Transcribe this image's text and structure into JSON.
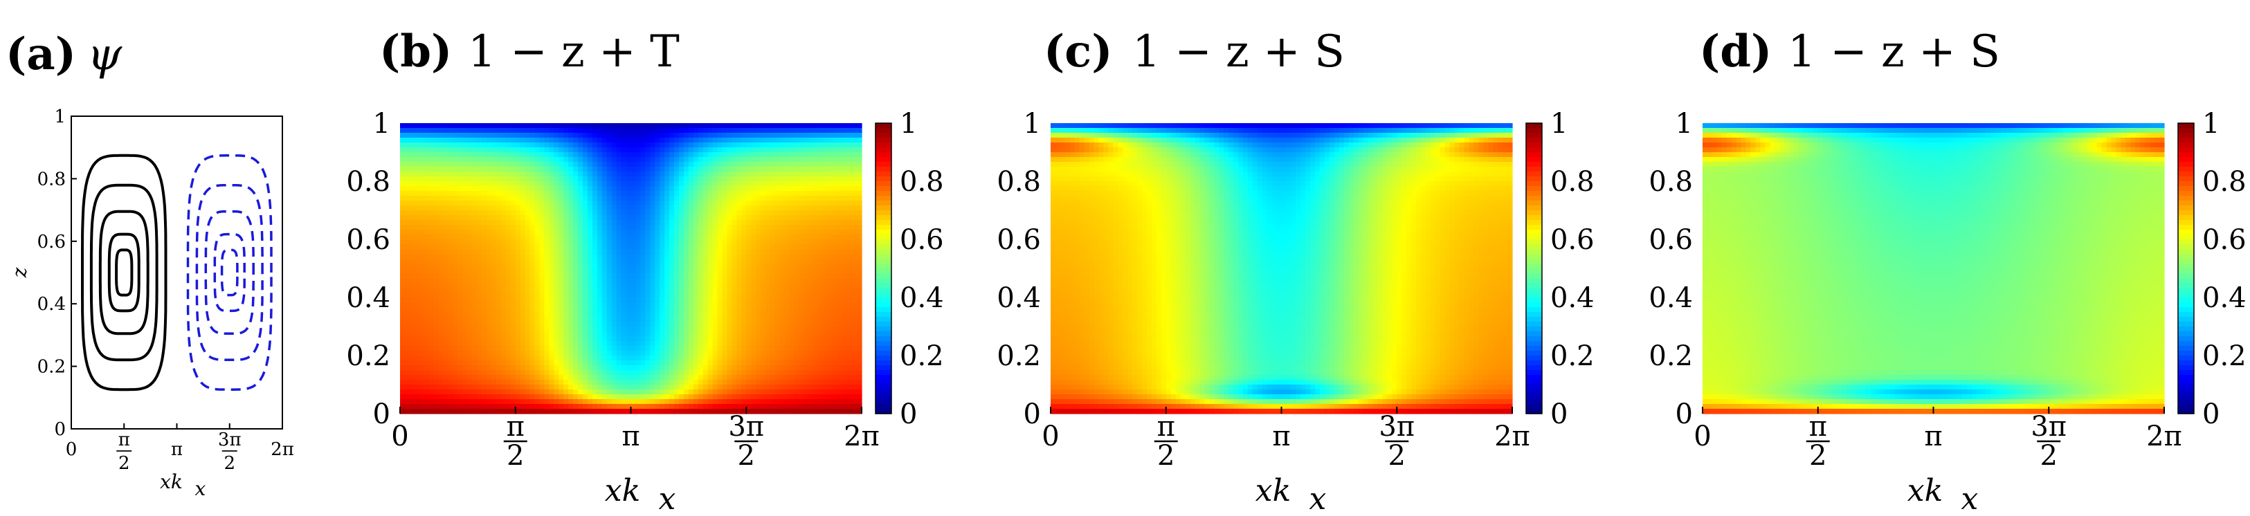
{
  "chart_data": [
    {
      "type": "contour",
      "panel_label": "(a)",
      "title": "ψ",
      "xlabel": "xk",
      "xlabel_sub": "x",
      "ylabel": "z",
      "xlim": [
        0,
        6.2832
      ],
      "ylim": [
        0,
        1
      ],
      "x_ticks": [
        "0",
        "π/2",
        "π",
        "3π/2",
        "2π"
      ],
      "y_ticks": [
        "0",
        "0.2",
        "0.4",
        "0.6",
        "0.8",
        "1"
      ],
      "series": [
        {
          "name": "positive",
          "color": "#000000",
          "line_style": "solid",
          "levels": [
            0.2,
            0.4,
            0.6,
            0.8,
            1.0
          ]
        },
        {
          "name": "negative",
          "color": "#1a1adb",
          "line_style": "dashed",
          "levels": [
            -0.2,
            -0.4,
            -0.6,
            -0.8,
            -1.0
          ]
        }
      ]
    },
    {
      "type": "heatmap",
      "panel_label": "(b)",
      "title": "1 − z + T",
      "xlabel": "xk",
      "xlabel_sub": "x",
      "xlim": [
        0,
        6.2832
      ],
      "ylim": [
        0,
        1
      ],
      "x_ticks": [
        "0",
        "π/2",
        "π",
        "3π/2",
        "2π"
      ],
      "y_ticks": [
        "0",
        "0.2",
        "0.4",
        "0.6",
        "0.8",
        "1"
      ],
      "colorbar": {
        "range": [
          0,
          1
        ],
        "ticks": [
          "0",
          "0.2",
          "0.4",
          "0.6",
          "0.8",
          "1"
        ],
        "colormap": "jet"
      },
      "field": {
        "bottom_value": 0.98,
        "top_value": 0.05,
        "bulk_side": 0.72,
        "bulk_center": 0.3,
        "plume_width": 0.7,
        "bl_bottom": 0.07,
        "bl_top": 0.12
      }
    },
    {
      "type": "heatmap",
      "panel_label": "(c)",
      "title": "1 − z + S",
      "xlabel": "xk",
      "xlabel_sub": "x",
      "xlim": [
        0,
        6.2832
      ],
      "ylim": [
        0,
        1
      ],
      "x_ticks": [
        "0",
        "π/2",
        "π",
        "3π/2",
        "2π"
      ],
      "y_ticks": [
        "0",
        "0.2",
        "0.4",
        "0.6",
        "0.8",
        "1"
      ],
      "colorbar": {
        "range": [
          0,
          1
        ],
        "ticks": [
          "0",
          "0.2",
          "0.4",
          "0.6",
          "0.8",
          "1"
        ],
        "colormap": "jet"
      },
      "field": {
        "bottom_value": 0.95,
        "top_value": 0.08,
        "bulk_side": 0.66,
        "bulk_center": 0.42,
        "plume_width": 0.9,
        "bl_bottom": 0.04,
        "bl_top": 0.06
      }
    },
    {
      "type": "heatmap",
      "panel_label": "(d)",
      "title": "1 − z + S",
      "xlabel": "xk",
      "xlabel_sub": "x",
      "xlim": [
        0,
        6.2832
      ],
      "ylim": [
        0,
        1
      ],
      "x_ticks": [
        "0",
        "π/2",
        "π",
        "3π/2",
        "2π"
      ],
      "y_ticks": [
        "0",
        "0.2",
        "0.4",
        "0.6",
        "0.8",
        "1"
      ],
      "colorbar": {
        "range": [
          0,
          1
        ],
        "ticks": [
          "0",
          "0.2",
          "0.4",
          "0.6",
          "0.8",
          "1"
        ],
        "colormap": "jet"
      },
      "field": {
        "bottom_value": 0.9,
        "top_value": 0.1,
        "bulk_side": 0.53,
        "bulk_center": 0.5,
        "plume_width": 1.2,
        "bl_bottom": 0.025,
        "bl_top": 0.025
      }
    }
  ]
}
